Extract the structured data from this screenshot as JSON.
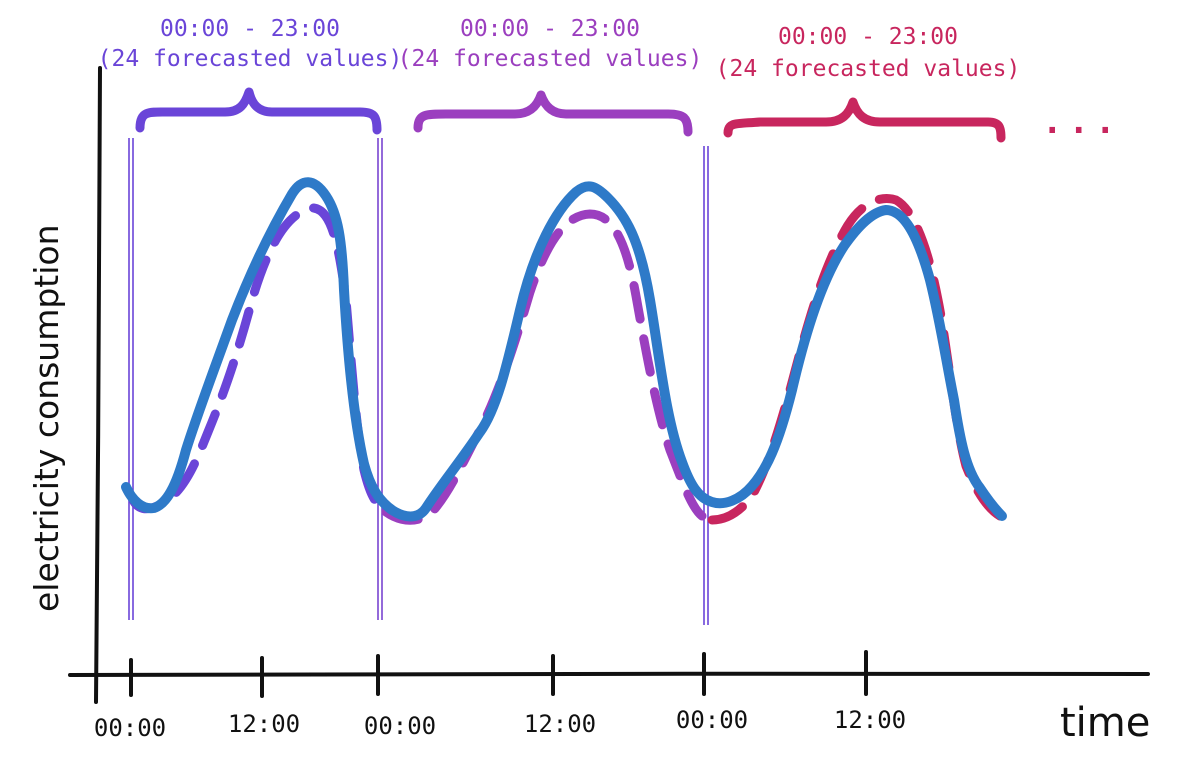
{
  "colors": {
    "actual": "#2e7ac8",
    "window1": "#6a45d8",
    "window2": "#9b3fbf",
    "window3": "#c8265e",
    "axis": "#111111"
  },
  "labels": {
    "y_axis": "electricity consumption",
    "x_axis": "time",
    "ellipsis": "..."
  },
  "windows": [
    {
      "range": "00:00 - 23:00",
      "note": "(24 forecasted values)",
      "color": "#6a45d8"
    },
    {
      "range": "00:00 - 23:00",
      "note": "(24 forecasted values)",
      "color": "#9b3fbf"
    },
    {
      "range": "00:00 - 23:00",
      "note": "(24 forecasted values)",
      "color": "#c8265e"
    }
  ],
  "x_ticks": [
    "00:00",
    "12:00",
    "00:00",
    "12:00",
    "00:00",
    "12:00"
  ]
}
